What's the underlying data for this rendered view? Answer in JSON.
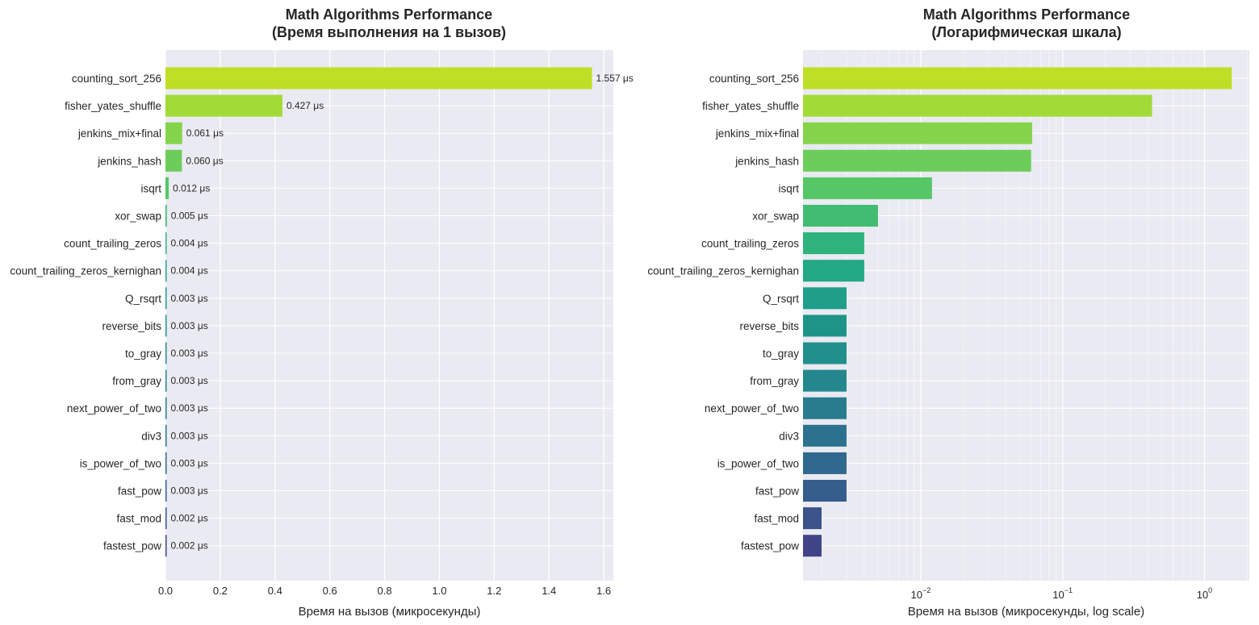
{
  "chart_data": [
    {
      "type": "bar",
      "orientation": "horizontal",
      "title": "Math Algorithms Performance",
      "subtitle": "(Время выполнения на 1 вызов)",
      "xlabel": "Время на вызов (микросекунды)",
      "ylabel": "",
      "xscale": "linear",
      "xlim": [
        0,
        1.635
      ],
      "xticks": [
        0,
        0.2,
        0.4,
        0.6,
        0.8,
        1.0,
        1.2,
        1.4,
        1.6
      ],
      "xtick_labels": [
        "0.0",
        "0.2",
        "0.4",
        "0.6",
        "0.8",
        "1.0",
        "1.2",
        "1.4",
        "1.6"
      ],
      "grid": true,
      "categories": [
        "counting_sort_256",
        "fisher_yates_shuffle",
        "jenkins_mix+final",
        "jenkins_hash",
        "isqrt",
        "xor_swap",
        "count_trailing_zeros",
        "count_trailing_zeros_kernighan",
        "Q_rsqrt",
        "reverse_bits",
        "to_gray",
        "from_gray",
        "next_power_of_two",
        "div3",
        "is_power_of_two",
        "fast_pow",
        "fast_mod",
        "fastest_pow"
      ],
      "values": [
        1.557,
        0.427,
        0.061,
        0.06,
        0.012,
        0.005,
        0.004,
        0.004,
        0.003,
        0.003,
        0.003,
        0.003,
        0.003,
        0.003,
        0.003,
        0.003,
        0.002,
        0.002
      ],
      "data_labels": [
        "1.557 μs",
        "0.427 μs",
        "0.061 μs",
        "0.060 μs",
        "0.012 μs",
        "0.005 μs",
        "0.004 μs",
        "0.004 μs",
        "0.003 μs",
        "0.003 μs",
        "0.003 μs",
        "0.003 μs",
        "0.003 μs",
        "0.003 μs",
        "0.003 μs",
        "0.003 μs",
        "0.002 μs",
        "0.002 μs"
      ],
      "colors": [
        "#bddf26",
        "#a2da37",
        "#84d44b",
        "#6ccd5a",
        "#56c667",
        "#40bd72",
        "#2eb37c",
        "#23a983",
        "#1f9e89",
        "#1e9489",
        "#21908c",
        "#24878e",
        "#287c8e",
        "#2c728e",
        "#31688e",
        "#355e8d",
        "#3b528b",
        "#404588"
      ]
    },
    {
      "type": "bar",
      "orientation": "horizontal",
      "title": "Math Algorithms Performance",
      "subtitle": "(Логарифмическая шкала)",
      "xlabel": "Время на вызов (микросекунды, log scale)",
      "ylabel": "",
      "xscale": "log",
      "xlim": [
        0.00148,
        2.07
      ],
      "xticks": [
        0.01,
        0.1,
        1
      ],
      "xtick_labels": [
        [
          "10",
          "−2"
        ],
        [
          "10",
          "−1"
        ],
        [
          "10",
          "0"
        ]
      ],
      "grid": true,
      "categories": [
        "counting_sort_256",
        "fisher_yates_shuffle",
        "jenkins_mix+final",
        "jenkins_hash",
        "isqrt",
        "xor_swap",
        "count_trailing_zeros",
        "count_trailing_zeros_kernighan",
        "Q_rsqrt",
        "reverse_bits",
        "to_gray",
        "from_gray",
        "next_power_of_two",
        "div3",
        "is_power_of_two",
        "fast_pow",
        "fast_mod",
        "fastest_pow"
      ],
      "values": [
        1.557,
        0.427,
        0.061,
        0.06,
        0.012,
        0.005,
        0.004,
        0.004,
        0.003,
        0.003,
        0.003,
        0.003,
        0.003,
        0.003,
        0.003,
        0.003,
        0.002,
        0.002
      ],
      "colors": [
        "#bddf26",
        "#a2da37",
        "#84d44b",
        "#6ccd5a",
        "#56c667",
        "#40bd72",
        "#2eb37c",
        "#23a983",
        "#1f9e89",
        "#1e9489",
        "#21908c",
        "#24878e",
        "#287c8e",
        "#2c728e",
        "#31688e",
        "#355e8d",
        "#3b528b",
        "#404588"
      ]
    }
  ]
}
